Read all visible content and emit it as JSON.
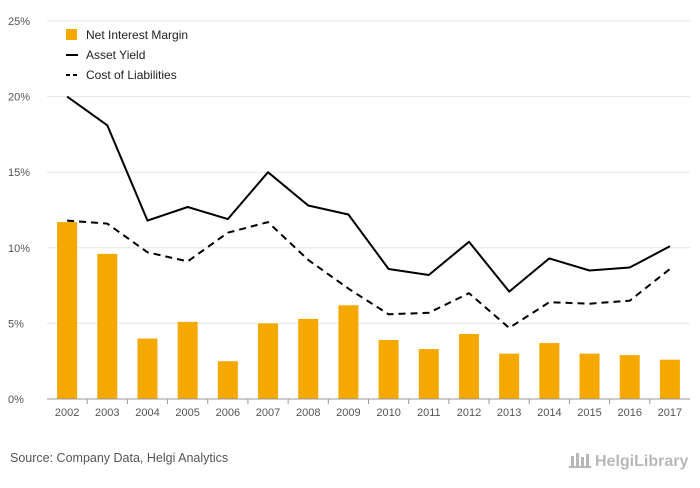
{
  "chart_data": {
    "type": "bar",
    "categories": [
      "2002",
      "2003",
      "2004",
      "2005",
      "2006",
      "2007",
      "2008",
      "2009",
      "2010",
      "2011",
      "2012",
      "2013",
      "2014",
      "2015",
      "2016",
      "2017"
    ],
    "series": [
      {
        "name": "Net Interest Margin",
        "kind": "bar",
        "color": "#f5a800",
        "values": [
          11.7,
          9.6,
          4.0,
          5.1,
          2.5,
          5.0,
          5.3,
          6.2,
          3.9,
          3.3,
          4.3,
          3.0,
          3.7,
          3.0,
          2.9,
          2.6
        ]
      },
      {
        "name": "Asset Yield",
        "kind": "line",
        "style": "solid",
        "color": "#000000",
        "values": [
          20.0,
          18.1,
          11.8,
          12.7,
          11.9,
          15.0,
          12.8,
          12.2,
          8.6,
          8.2,
          10.4,
          7.1,
          9.3,
          8.5,
          8.7,
          10.1
        ]
      },
      {
        "name": "Cost of Liabilities",
        "kind": "line",
        "style": "dashed",
        "color": "#000000",
        "values": [
          11.8,
          11.6,
          9.7,
          9.1,
          11.0,
          11.7,
          9.2,
          7.3,
          5.6,
          5.7,
          7.0,
          4.7,
          6.4,
          6.3,
          6.5,
          8.6
        ]
      }
    ],
    "yticks": [
      "0%",
      "5%",
      "10%",
      "15%",
      "20%",
      "25%"
    ],
    "ylim": [
      0,
      25
    ],
    "grid": true,
    "legend_position": "top-left"
  },
  "footer": {
    "source": "Source: Company Data, Helgi Analytics",
    "logo": "HelgiLibrary"
  }
}
